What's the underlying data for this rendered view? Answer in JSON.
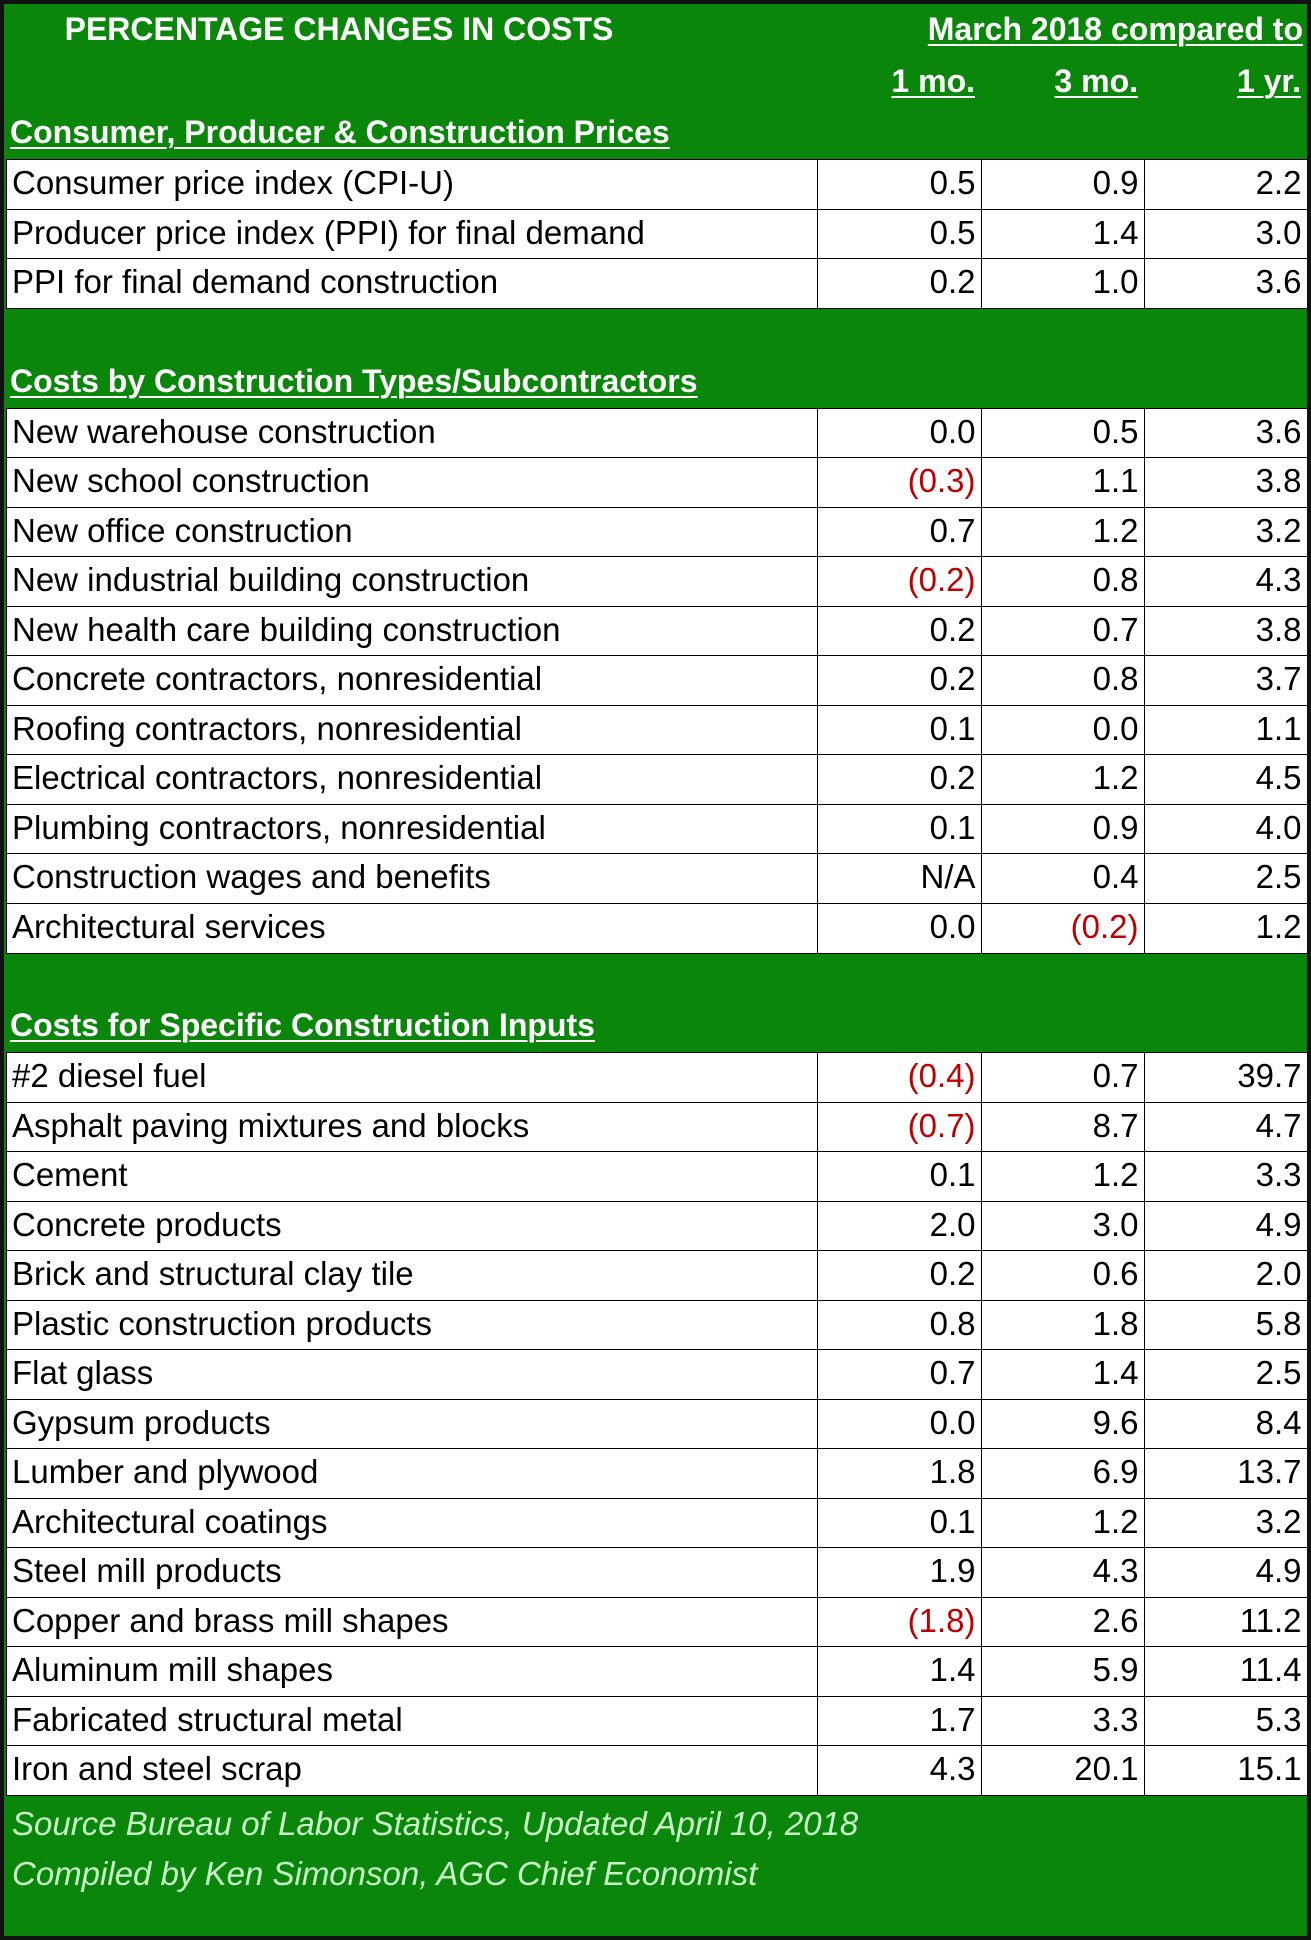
{
  "header": {
    "title": "PERCENTAGE CHANGES IN COSTS",
    "comparison": "March 2018 compared to",
    "columns": [
      "1 mo.",
      "3 mo.",
      "1 yr."
    ]
  },
  "sections": [
    {
      "title": "Consumer, Producer & Construction Prices",
      "rows": [
        [
          "Consumer price index (CPI-U)",
          "0.5",
          "0.9",
          "2.2"
        ],
        [
          "Producer price index (PPI) for final demand",
          "0.5",
          "1.4",
          "3.0"
        ],
        [
          "PPI  for final demand construction",
          "0.2",
          "1.0",
          "3.6"
        ]
      ]
    },
    {
      "title": "Costs by Construction Types/Subcontractors",
      "rows": [
        [
          "New warehouse construction",
          "0.0",
          "0.5",
          "3.6"
        ],
        [
          "New school construction",
          "(0.3)",
          "1.1",
          "3.8"
        ],
        [
          "New office construction",
          "0.7",
          "1.2",
          "3.2"
        ],
        [
          "New industrial building construction",
          "(0.2)",
          "0.8",
          "4.3"
        ],
        [
          "New health care building construction",
          "0.2",
          "0.7",
          "3.8"
        ],
        [
          "Concrete contractors, nonresidential",
          "0.2",
          "0.8",
          "3.7"
        ],
        [
          "Roofing contractors, nonresidential",
          "0.1",
          "0.0",
          "1.1"
        ],
        [
          "Electrical contractors, nonresidential",
          "0.2",
          "1.2",
          "4.5"
        ],
        [
          "Plumbing contractors, nonresidential",
          "0.1",
          "0.9",
          "4.0"
        ],
        [
          "Construction wages and benefits",
          "N/A",
          "0.4",
          "2.5"
        ],
        [
          "Architectural services",
          "0.0",
          "(0.2)",
          "1.2"
        ]
      ]
    },
    {
      "title": "Costs for Specific Construction Inputs",
      "rows": [
        [
          "#2 diesel fuel",
          "(0.4)",
          "0.7",
          "39.7"
        ],
        [
          "Asphalt paving mixtures and blocks",
          "(0.7)",
          "8.7",
          "4.7"
        ],
        [
          "Cement",
          "0.1",
          "1.2",
          "3.3"
        ],
        [
          "Concrete products",
          "2.0",
          "3.0",
          "4.9"
        ],
        [
          "Brick and structural clay tile",
          "0.2",
          "0.6",
          "2.0"
        ],
        [
          "Plastic construction products",
          "0.8",
          "1.8",
          "5.8"
        ],
        [
          "Flat glass",
          "0.7",
          "1.4",
          "2.5"
        ],
        [
          "Gypsum products",
          "0.0",
          "9.6",
          "8.4"
        ],
        [
          "Lumber and plywood",
          "1.8",
          "6.9",
          "13.7"
        ],
        [
          "Architectural coatings",
          "0.1",
          "1.2",
          "3.2"
        ],
        [
          "Steel mill products",
          "1.9",
          "4.3",
          "4.9"
        ],
        [
          "Copper and brass mill shapes",
          "(1.8)",
          "2.6",
          "11.2"
        ],
        [
          "Aluminum mill shapes",
          "1.4",
          "5.9",
          "11.4"
        ],
        [
          "Fabricated structural metal",
          "1.7",
          "3.3",
          "5.3"
        ],
        [
          "Iron and steel scrap",
          "4.3",
          "20.1",
          "15.1"
        ]
      ]
    }
  ],
  "footer": [
    "Source Bureau of Labor Statistics, Updated April 10, 2018",
    "Compiled by Ken Simonson, AGC Chief Economist"
  ]
}
